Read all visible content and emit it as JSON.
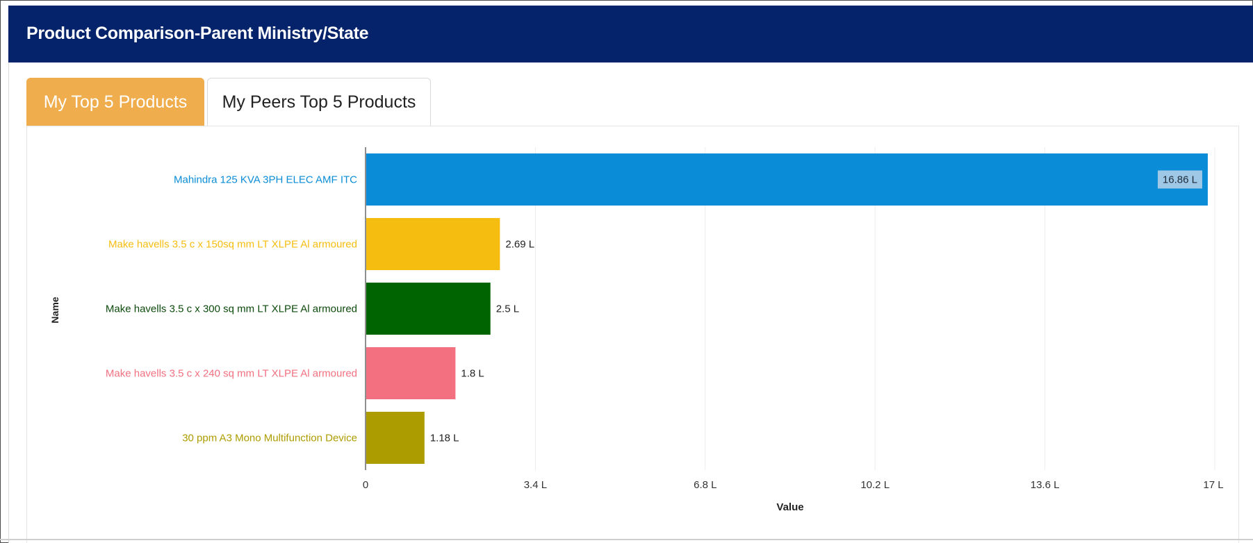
{
  "header": {
    "title": "Product Comparison-Parent Ministry/State"
  },
  "tabs": [
    {
      "label": "My Top 5 Products",
      "active": true
    },
    {
      "label": "My Peers Top 5 Products",
      "active": false
    }
  ],
  "colors": {
    "header_bg": "#04236a",
    "tab_active": "#efad4d"
  },
  "chart_data": {
    "type": "bar",
    "orientation": "horizontal",
    "categories": [
      "Mahindra 125 KVA 3PH ELEC AMF ITC",
      "Make havells 3.5 c x 150sq mm LT XLPE Al armoured",
      "Make havells 3.5 c x 300 sq mm LT XLPE Al armoured",
      "Make havells 3.5 c x 240 sq mm LT XLPE Al armoured",
      "30 ppm A3 Mono Multifunction Device"
    ],
    "values": [
      16.86,
      2.69,
      2.5,
      1.8,
      1.18
    ],
    "value_labels": [
      "16.86 L",
      "2.69 L",
      "2.5 L",
      "1.8 L",
      "1.18 L"
    ],
    "colors": [
      "#0a8dd6",
      "#f5bd0f",
      "#006400",
      "#f27080",
      "#ad9c00"
    ],
    "xlabel": "Value",
    "ylabel": "Name",
    "xlim": [
      0,
      17
    ],
    "x_ticks": [
      0,
      3.4,
      6.8,
      10.2,
      13.6,
      17
    ],
    "x_tick_labels": [
      "0",
      "3.4 L",
      "6.8 L",
      "10.2 L",
      "13.6 L",
      "17 L"
    ],
    "grid": true
  }
}
